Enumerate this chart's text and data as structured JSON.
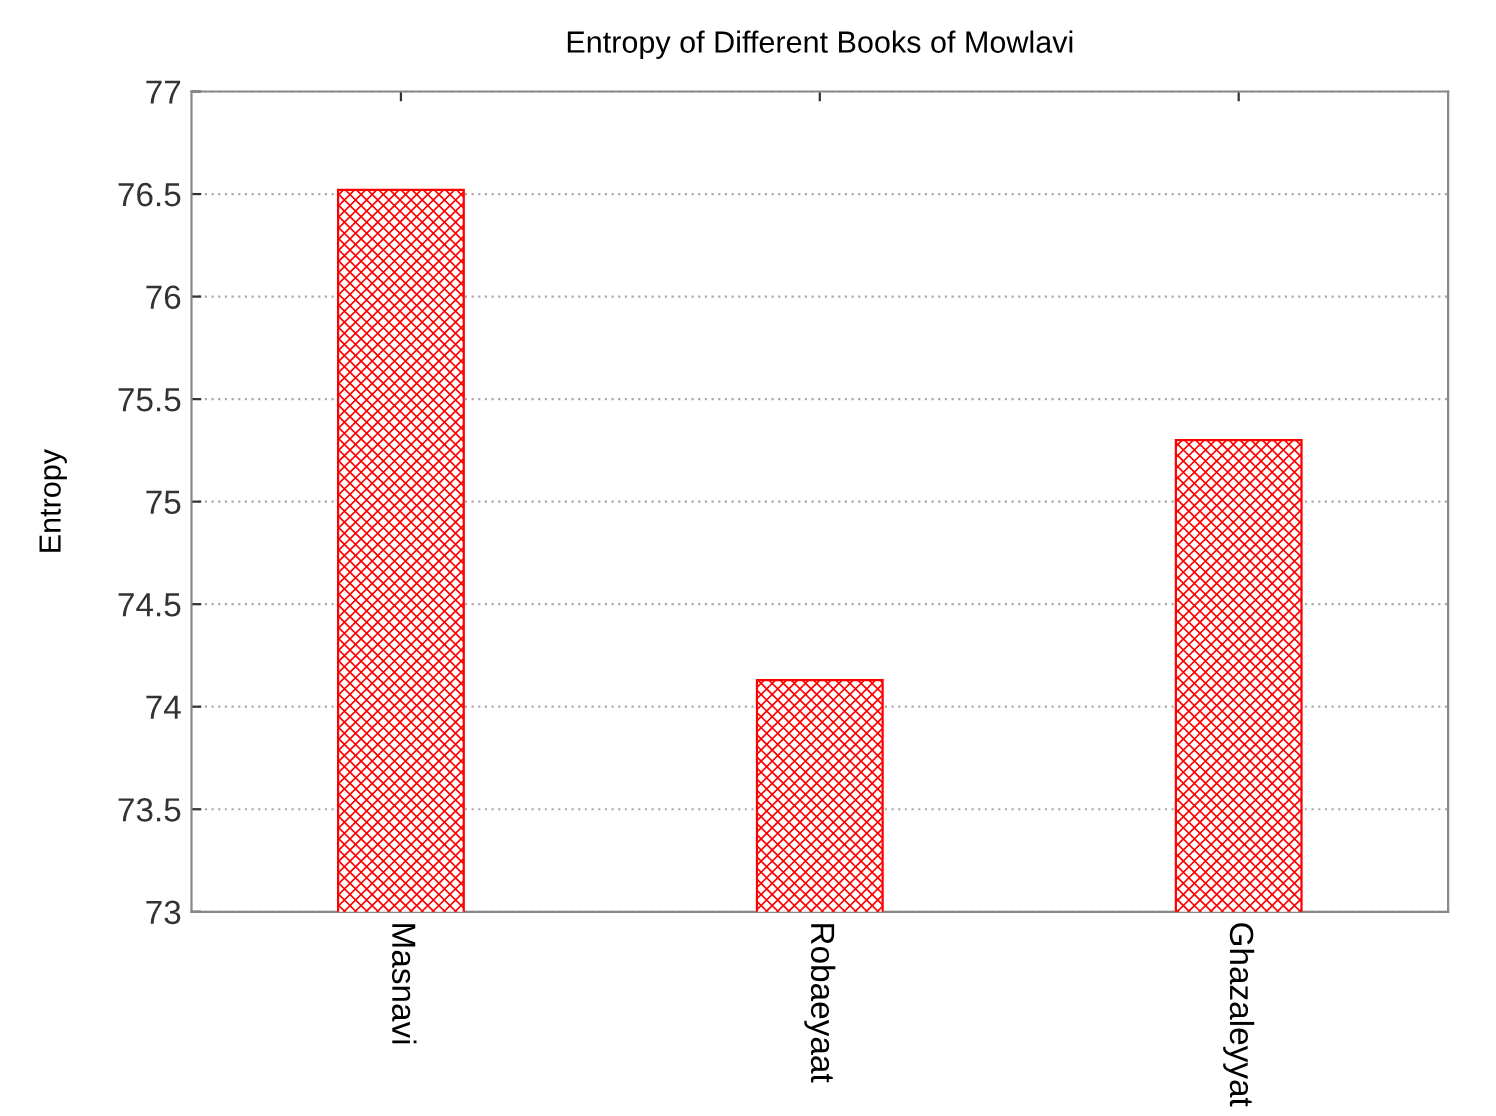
{
  "chart_data": {
    "type": "bar",
    "title": "Entropy of Different Books of Mowlavi",
    "ylabel": "Entropy",
    "categories": [
      "Masnavi",
      "Robaeyaat",
      "Ghazaleyyat"
    ],
    "values": [
      76.52,
      74.13,
      75.3
    ],
    "color": "#ff0000",
    "ylim": [
      73,
      77
    ],
    "yticks": [
      73,
      73.5,
      74,
      74.5,
      75,
      75.5,
      76,
      76.5,
      77
    ],
    "grid": "y"
  }
}
